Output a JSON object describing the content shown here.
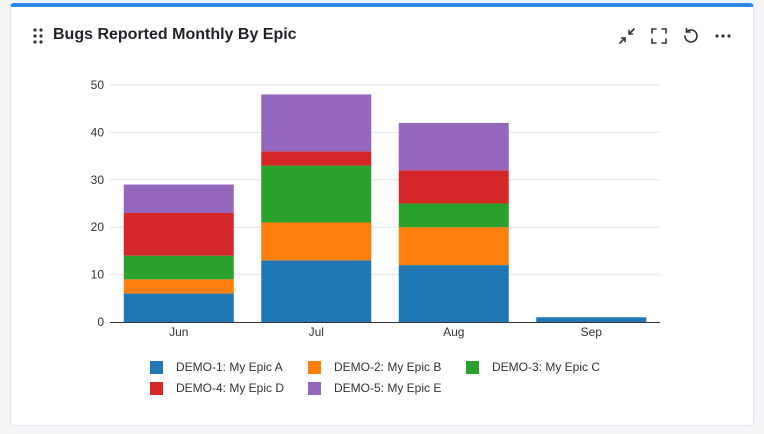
{
  "header": {
    "title": "Bugs Reported Monthly By Epic"
  },
  "icons": {
    "drag": "drag-handle-icon",
    "collapse": "collapse-icon",
    "fullscreen": "fullscreen-icon",
    "refresh": "refresh-icon",
    "more": "more-icon"
  },
  "chart_data": {
    "type": "bar",
    "stacked": true,
    "categories": [
      "Jun",
      "Jul",
      "Aug",
      "Sep"
    ],
    "series": [
      {
        "name": "DEMO-1: My Epic A",
        "color": "#1f77b4",
        "values": [
          6,
          13,
          12,
          1
        ]
      },
      {
        "name": "DEMO-2: My Epic B",
        "color": "#ff7f0e",
        "values": [
          3,
          8,
          8,
          0
        ]
      },
      {
        "name": "DEMO-3: My Epic C",
        "color": "#2ca02c",
        "values": [
          5,
          12,
          5,
          0
        ]
      },
      {
        "name": "DEMO-4: My Epic D",
        "color": "#d62728",
        "values": [
          9,
          3,
          7,
          0
        ]
      },
      {
        "name": "DEMO-5: My Epic E",
        "color": "#9467bd",
        "values": [
          6,
          12,
          10,
          0
        ]
      }
    ],
    "yticks": [
      0,
      10,
      20,
      30,
      40,
      50
    ],
    "ylim": [
      0,
      50
    ],
    "grid": true,
    "legend_position": "bottom"
  }
}
